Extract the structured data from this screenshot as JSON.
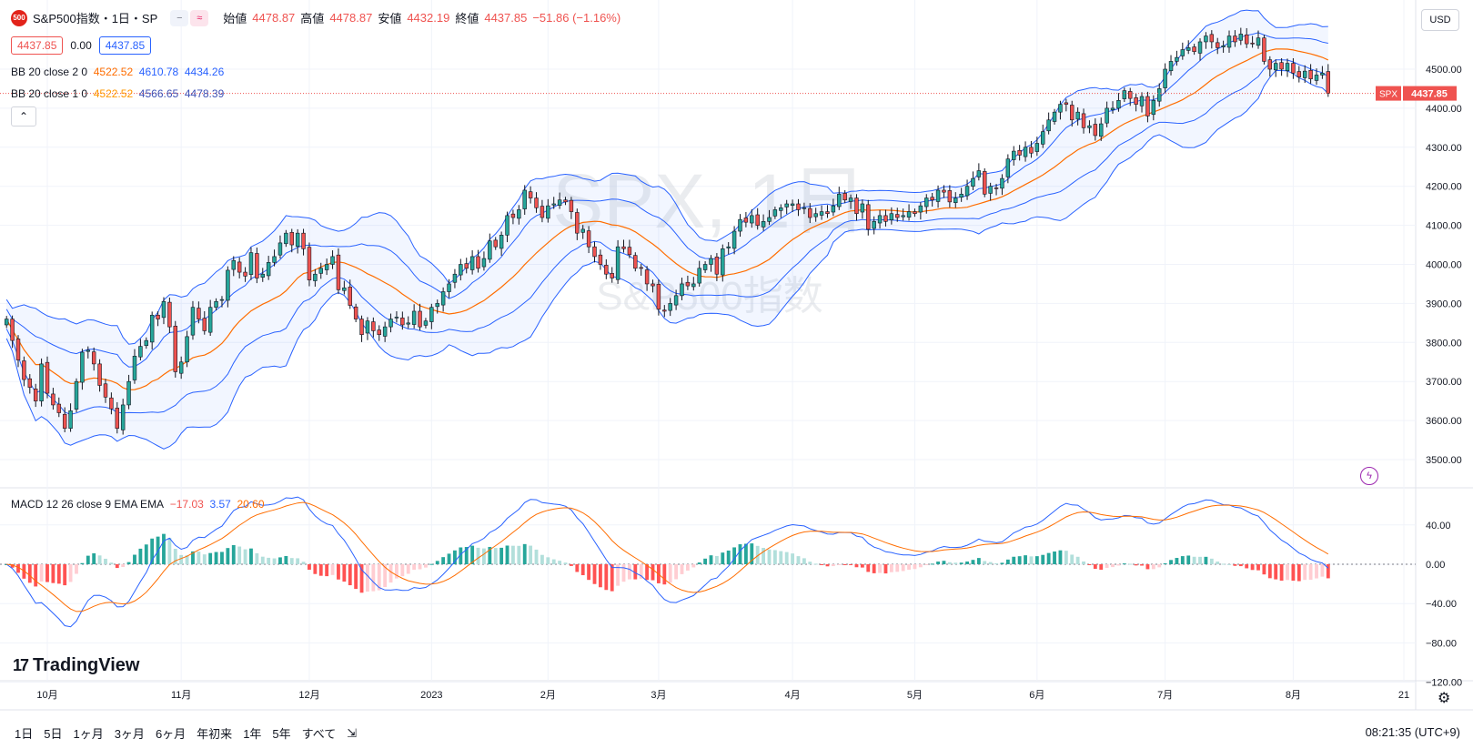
{
  "header": {
    "badge": "500",
    "symbol_title": "S&P500指数・1日・SP",
    "open_label": "始値",
    "open": "4478.87",
    "high_label": "高値",
    "high": "4478.87",
    "low_label": "安値",
    "low": "4432.19",
    "close_label": "終値",
    "close": "4437.85",
    "change": "−51.86 (−1.16%)",
    "bid": "4437.85",
    "spread": "0.00",
    "ask": "4437.85"
  },
  "indicators": {
    "bb2": {
      "label": "BB 20 close 2 0",
      "mid": "4522.52",
      "upper": "4610.78",
      "lower": "4434.26"
    },
    "bb1": {
      "label": "BB 20 close 1 0",
      "mid": "4522.52",
      "upper": "4566.65",
      "lower": "4478.39"
    },
    "macd": {
      "label": "MACD 12 26 close 9 EMA EMA",
      "hist": "−17.03",
      "macd": "3.57",
      "signal": "20.60"
    }
  },
  "watermark": {
    "line1": "SPX, 1日",
    "line2": "S&P500指数"
  },
  "price_axis": {
    "currency": "USD",
    "ticks": [
      "4500.00",
      "4400.00",
      "4300.00",
      "4200.00",
      "4100.00",
      "4000.00",
      "3900.00",
      "3800.00",
      "3700.00",
      "3600.00",
      "3500.00"
    ],
    "last_label": "SPX",
    "last_value": "4437.85"
  },
  "macd_axis": {
    "ticks": [
      "40.00",
      "0.00",
      "−40.00",
      "−80.00",
      "−120.00"
    ]
  },
  "time_axis": {
    "labels": [
      "10月",
      "11月",
      "12月",
      "2023",
      "2月",
      "3月",
      "4月",
      "5月",
      "6月",
      "7月",
      "8月",
      "21"
    ]
  },
  "ranges": [
    "1日",
    "5日",
    "1ヶ月",
    "3ヶ月",
    "6ヶ月",
    "年初来",
    "1年",
    "5年",
    "すべて"
  ],
  "clock": "08:21:35 (UTC+9)",
  "logo": "TradingView",
  "colors": {
    "up": "#26a69a",
    "down": "#ef5350",
    "bb_band": "#2962ff",
    "basis": "#ff6d00",
    "macd_line": "#2962ff",
    "signal_line": "#ff6d00"
  },
  "chart_data": {
    "type": "candlestick",
    "start_date": "2022-09-21",
    "close": [
      3860,
      3805,
      3755,
      3705,
      3685,
      3650,
      3745,
      3670,
      3640,
      3620,
      3580,
      3625,
      3700,
      3775,
      3780,
      3745,
      3690,
      3660,
      3630,
      3580,
      3640,
      3700,
      3765,
      3790,
      3805,
      3870,
      3860,
      3905,
      3840,
      3725,
      3750,
      3815,
      3890,
      3860,
      3830,
      3890,
      3905,
      3910,
      3985,
      4010,
      3980,
      3970,
      4030,
      3965,
      3975,
      4005,
      4020,
      4055,
      4080,
      4050,
      4080,
      4040,
      3960,
      3975,
      3990,
      4000,
      4020,
      3935,
      3940,
      3895,
      3860,
      3820,
      3855,
      3830,
      3820,
      3840,
      3860,
      3865,
      3845,
      3850,
      3880,
      3840,
      3855,
      3890,
      3900,
      3930,
      3950,
      3975,
      4000,
      3990,
      4020,
      3990,
      4015,
      4060,
      4045,
      4075,
      4125,
      4120,
      4140,
      4190,
      4170,
      4145,
      4120,
      4150,
      4155,
      4165,
      4160,
      4135,
      4080,
      4090,
      4045,
      4020,
      4000,
      3975,
      3965,
      4045,
      4040,
      4025,
      3990,
      3990,
      3950,
      3945,
      3885,
      3880,
      3900,
      3920,
      3950,
      3945,
      3950,
      3990,
      4000,
      4015,
      3975,
      4040,
      4045,
      4085,
      4115,
      4108,
      4125,
      4100,
      4110,
      4120,
      4140,
      4145,
      4155,
      4155,
      4140,
      4145,
      4120,
      4130,
      4135,
      4130,
      4150,
      4180,
      4165,
      4170,
      4130,
      4155,
      4090,
      4110,
      4125,
      4110,
      4130,
      4120,
      4125,
      4135,
      4130,
      4150,
      4170,
      4165,
      4190,
      4185,
      4160,
      4170,
      4180,
      4200,
      4220,
      4240,
      4180,
      4200,
      4195,
      4220,
      4270,
      4290,
      4280,
      4300,
      4285,
      4310,
      4340,
      4370,
      4390,
      4410,
      4410,
      4370,
      4390,
      4350,
      4355,
      4330,
      4360,
      4400,
      4400,
      4420,
      4445,
      4425,
      4410,
      4430,
      4380,
      4420,
      4450,
      4500,
      4520,
      4530,
      4550,
      4555,
      4545,
      4570,
      4585,
      4570,
      4555,
      4560,
      4585,
      4570,
      4590,
      4565,
      4565,
      4580,
      4520,
      4500,
      4515,
      4500,
      4515,
      4490,
      4480,
      4495,
      4475,
      4485,
      4490,
      4438
    ]
  }
}
